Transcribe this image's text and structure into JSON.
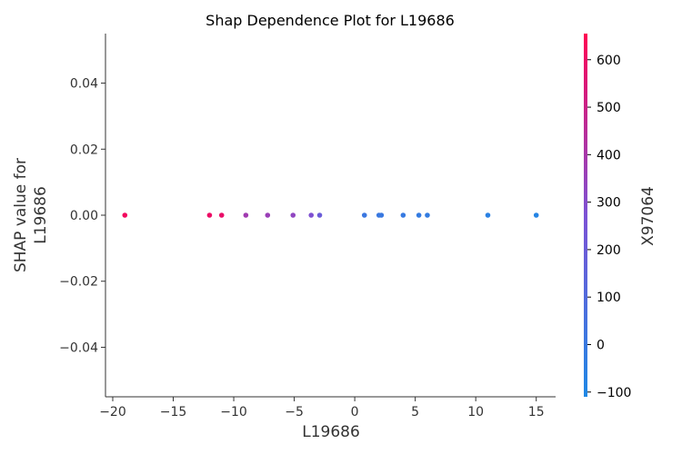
{
  "chart_data": {
    "type": "scatter",
    "title": "Shap Dependence Plot for L19686",
    "xlabel": "L19686",
    "ylabel_lines": [
      "SHAP value for",
      "L19686"
    ],
    "xlim": [
      -20.6,
      16.6
    ],
    "ylim": [
      -0.055,
      0.055
    ],
    "x_ticks": [
      -20,
      -15,
      -10,
      -5,
      0,
      5,
      10,
      15
    ],
    "x_tick_labels": [
      "−20",
      "−15",
      "−10",
      "−5",
      "0",
      "5",
      "10",
      "15"
    ],
    "y_ticks": [
      0.04,
      0.02,
      0.0,
      -0.02,
      -0.04
    ],
    "y_tick_labels": [
      "0.04",
      "0.02",
      "0.00",
      "−0.02",
      "−0.04"
    ],
    "grid": false,
    "points": [
      {
        "x": -19.0,
        "y": 0.0,
        "color_value": 620
      },
      {
        "x": -12.0,
        "y": 0.0,
        "color_value": 600
      },
      {
        "x": -11.0,
        "y": 0.0,
        "color_value": 590
      },
      {
        "x": -9.0,
        "y": 0.0,
        "color_value": 380
      },
      {
        "x": -7.2,
        "y": 0.0,
        "color_value": 360
      },
      {
        "x": -5.1,
        "y": 0.0,
        "color_value": 330
      },
      {
        "x": -3.6,
        "y": 0.0,
        "color_value": 280
      },
      {
        "x": -2.9,
        "y": 0.0,
        "color_value": 200
      },
      {
        "x": 0.8,
        "y": 0.0,
        "color_value": 10
      },
      {
        "x": 2.0,
        "y": 0.0,
        "color_value": 0
      },
      {
        "x": 2.2,
        "y": 0.0,
        "color_value": 0
      },
      {
        "x": 4.0,
        "y": 0.0,
        "color_value": -10
      },
      {
        "x": 5.3,
        "y": 0.0,
        "color_value": -20
      },
      {
        "x": 6.0,
        "y": 0.0,
        "color_value": -25
      },
      {
        "x": 11.0,
        "y": 0.0,
        "color_value": -60
      },
      {
        "x": 15.0,
        "y": 0.0,
        "color_value": -80
      }
    ],
    "colorbar": {
      "label": "X97064",
      "range": [
        -110,
        655
      ],
      "ticks": [
        600,
        500,
        400,
        300,
        200,
        100,
        0,
        -100
      ],
      "tick_labels": [
        "600",
        "500",
        "400",
        "300",
        "200",
        "100",
        "0",
        "−100"
      ],
      "color_low": "#1e88e5",
      "color_mid": "#7c52d5",
      "color_high": "#ff0052"
    }
  }
}
